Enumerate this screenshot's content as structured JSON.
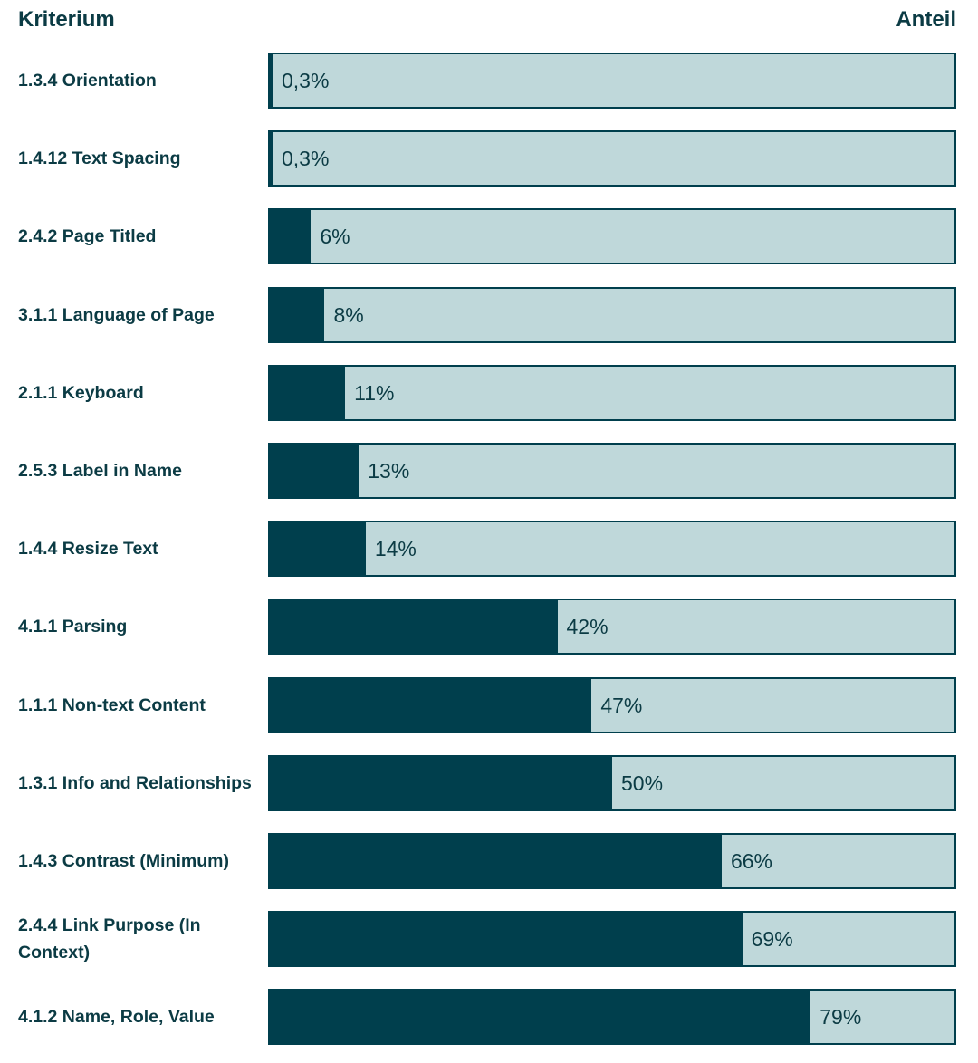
{
  "chart_data": {
    "type": "bar",
    "orientation": "horizontal",
    "header_left": "Kriterium",
    "header_right": "Anteil",
    "categories": [
      "1.3.4 Orientation",
      "1.4.12 Text Spacing",
      "2.4.2 Page Titled",
      "3.1.1 Language of Page",
      "2.1.1 Keyboard",
      "2.5.3 Label in Name",
      "1.4.4 Resize Text",
      "4.1.1 Parsing",
      "1.1.1 Non-text Content",
      "1.3.1 Info and Relationships",
      "1.4.3 Contrast (Minimum)",
      "2.4.4 Link Purpose (In Context)",
      "4.1.2 Name, Role, Value"
    ],
    "values": [
      0.3,
      0.3,
      6,
      8,
      11,
      13,
      14,
      42,
      47,
      50,
      66,
      69,
      79
    ],
    "value_labels": [
      "0,3%",
      "0,3%",
      "6%",
      "8%",
      "11%",
      "13%",
      "14%",
      "42%",
      "47%",
      "50%",
      "66%",
      "69%",
      "79%"
    ],
    "xlim": [
      0,
      100
    ],
    "unit": "%",
    "grid": false,
    "colors": {
      "fill": "#003f4d",
      "track": "#bfd8da",
      "text": "#0b3b44"
    }
  }
}
